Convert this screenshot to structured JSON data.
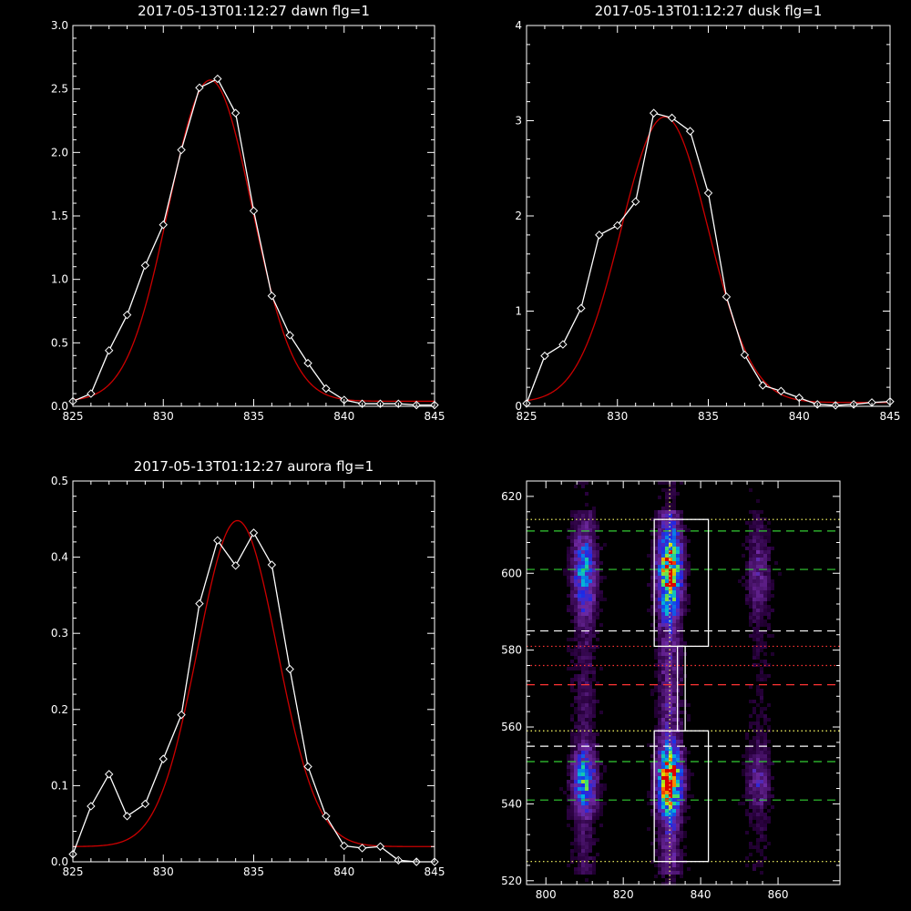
{
  "chart_data": [
    {
      "type": "line",
      "title": "2017-05-13T01:12:27 dawn flg=1",
      "xlabel": "",
      "ylabel": "",
      "xlim": [
        825,
        845
      ],
      "ylim": [
        0,
        3.0
      ],
      "xticks": [
        "825",
        "830",
        "835",
        "840",
        "845"
      ],
      "yticks": [
        "0.0",
        "0.5",
        "1.0",
        "1.5",
        "2.0",
        "2.5",
        "3.0"
      ],
      "grid": false,
      "series": [
        {
          "color": "#ffffff",
          "marker": "diamond",
          "x": [
            825,
            826,
            827,
            828,
            829,
            830,
            831,
            832,
            833,
            834,
            835,
            836,
            837,
            838,
            839,
            840,
            841,
            842,
            843,
            844,
            845
          ],
          "y": [
            0.04,
            0.1,
            0.44,
            0.72,
            1.11,
            1.43,
            2.02,
            2.51,
            2.58,
            2.31,
            1.54,
            0.87,
            0.56,
            0.34,
            0.14,
            0.05,
            0.02,
            0.02,
            0.02,
            0.01,
            0.01
          ]
        },
        {
          "color": "#cc0000",
          "marker": "none",
          "fit": "gaussian",
          "amplitude": 2.53,
          "center": 832.6,
          "sigma": 2.3,
          "offset": 0.04
        }
      ]
    },
    {
      "type": "line",
      "title": "2017-05-13T01:12:27 dusk flg=1",
      "xlabel": "",
      "ylabel": "",
      "xlim": [
        825,
        845
      ],
      "ylim": [
        0,
        4
      ],
      "xticks": [
        "825",
        "830",
        "835",
        "840",
        "845"
      ],
      "yticks": [
        "0",
        "1",
        "2",
        "3",
        "4"
      ],
      "grid": false,
      "series": [
        {
          "color": "#ffffff",
          "marker": "diamond",
          "x": [
            825,
            826,
            827,
            828,
            829,
            830,
            831,
            832,
            833,
            834,
            835,
            836,
            837,
            838,
            839,
            840,
            841,
            842,
            843,
            844,
            845
          ],
          "y": [
            0.03,
            0.53,
            0.65,
            1.03,
            1.8,
            1.9,
            2.15,
            3.08,
            3.03,
            2.89,
            2.24,
            1.15,
            0.54,
            0.22,
            0.16,
            0.09,
            0.02,
            0.01,
            0.02,
            0.04,
            0.05
          ]
        },
        {
          "color": "#cc0000",
          "marker": "none",
          "fit": "gaussian",
          "amplitude": 3.0,
          "center": 832.6,
          "sigma": 2.4,
          "offset": 0.04
        }
      ]
    },
    {
      "type": "line",
      "title": "2017-05-13T01:12:27 aurora flg=1",
      "xlabel": "",
      "ylabel": "",
      "xlim": [
        825,
        845
      ],
      "ylim": [
        0,
        0.5
      ],
      "xticks": [
        "825",
        "830",
        "835",
        "840",
        "845"
      ],
      "yticks": [
        "0.0",
        "0.1",
        "0.2",
        "0.3",
        "0.4",
        "0.5"
      ],
      "grid": false,
      "series": [
        {
          "color": "#ffffff",
          "marker": "diamond",
          "x": [
            825,
            826,
            827,
            828,
            829,
            830,
            831,
            832,
            833,
            834,
            835,
            836,
            837,
            838,
            839,
            840,
            841,
            842,
            843,
            844,
            845
          ],
          "y": [
            0.01,
            0.073,
            0.115,
            0.06,
            0.076,
            0.135,
            0.193,
            0.339,
            0.422,
            0.389,
            0.432,
            0.39,
            0.253,
            0.125,
            0.06,
            0.021,
            0.018,
            0.02,
            0.002,
            0.0,
            0.0
          ]
        },
        {
          "color": "#cc0000",
          "marker": "none",
          "fit": "gaussian",
          "amplitude": 0.428,
          "center": 834.1,
          "sigma": 2.2,
          "offset": 0.02
        }
      ]
    },
    {
      "type": "heatmap",
      "title": "",
      "xlabel": "",
      "ylabel": "",
      "xlim": [
        795,
        876
      ],
      "ylim": [
        519,
        624
      ],
      "xticks": [
        "800",
        "820",
        "840",
        "860"
      ],
      "yticks": [
        "520",
        "540",
        "560",
        "580",
        "600",
        "620"
      ],
      "grid": false,
      "colormap": "rainbow",
      "emission_columns": [
        {
          "center": 810,
          "width": 3,
          "strength": 0.55
        },
        {
          "center": 832,
          "width": 3,
          "strength": 1.0
        },
        {
          "center": 855,
          "width": 3,
          "strength": 0.25
        }
      ],
      "emission_bands": [
        {
          "center": 546,
          "width": 8,
          "strength": 1.0
        },
        {
          "center": 600,
          "width": 10,
          "strength": 0.85
        }
      ],
      "boxes": [
        {
          "x": [
            828,
            842
          ],
          "y": [
            581,
            614
          ],
          "color": "#ffffff"
        },
        {
          "x": [
            828,
            842
          ],
          "y": [
            525,
            559
          ],
          "color": "#ffffff"
        },
        {
          "x": [
            834,
            836
          ],
          "y": [
            559,
            581
          ],
          "color": "#ffffff"
        }
      ],
      "hlines": [
        {
          "y": 614,
          "color": "#ffff66",
          "style": "dotted"
        },
        {
          "y": 611,
          "color": "#33cc33",
          "style": "dashed"
        },
        {
          "y": 601,
          "color": "#33cc33",
          "style": "dashed"
        },
        {
          "y": 585,
          "color": "#ffffff",
          "style": "dashed"
        },
        {
          "y": 581,
          "color": "#ff3333",
          "style": "dotted"
        },
        {
          "y": 576,
          "color": "#ff3333",
          "style": "dotted"
        },
        {
          "y": 571,
          "color": "#ff3333",
          "style": "dashed"
        },
        {
          "y": 559,
          "color": "#ffff66",
          "style": "dotted"
        },
        {
          "y": 555,
          "color": "#ffffff",
          "style": "dashed"
        },
        {
          "y": 551,
          "color": "#33cc33",
          "style": "dashed"
        },
        {
          "y": 541,
          "color": "#33cc33",
          "style": "dashed"
        },
        {
          "y": 525,
          "color": "#ffff66",
          "style": "dotted"
        }
      ],
      "vlines": [
        {
          "x": 832,
          "color": "#ffff66",
          "style": "dotted"
        }
      ]
    }
  ]
}
